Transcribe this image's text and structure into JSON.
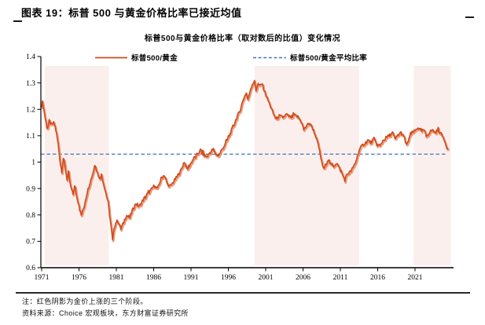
{
  "figure": {
    "title": "图表 19：标普 500 与黄金价格比率已接近均值",
    "chart_title": "标普500与黄金价格比率（取对数后的比值）变化情况",
    "note": "注：红色阴影为金价上涨的三个阶段。",
    "source": "资料来源：Choice 宏观板块，东方财富证券研究所"
  },
  "colors": {
    "series": "#CE4B1F",
    "series_echo": "#EB9E7D",
    "average_line": "#4472C4",
    "band": "#FBEFED",
    "axis": "#000000"
  },
  "chart_data": {
    "type": "line",
    "title": "标普500与黄金价格比率（取对数后的比值）变化情况",
    "legend": [
      {
        "label": "标普500/黄金",
        "style": "solid"
      },
      {
        "label": "标普500/黄金平均比率",
        "style": "dashed"
      }
    ],
    "x_axis": {
      "range": [
        1971,
        2026.3
      ],
      "tick_labels": [
        "1971",
        "1976",
        "1981",
        "1986",
        "1991",
        "1996",
        "2001",
        "2006",
        "2011",
        "2016",
        "2021"
      ],
      "tick_years": [
        1971,
        1976,
        1981,
        1986,
        1991,
        1996,
        2001,
        2006,
        2011,
        2016,
        2021
      ]
    },
    "y_axis": {
      "range": [
        0.6,
        1.4
      ],
      "tick_values": [
        1.4,
        1.3,
        1.2,
        1.1,
        1.0,
        0.9,
        0.8,
        0.7,
        0.6
      ],
      "tick_labels": [
        "1.4",
        "1.3",
        "1.2",
        "1.1",
        "1",
        "0.9",
        "0.8",
        "0.7",
        "0.6"
      ]
    },
    "average_ratio": 1.03,
    "shaded_bands_years": [
      [
        1971.4,
        1980.0
      ],
      [
        1999.5,
        2013.5
      ],
      [
        2020.8,
        2025.8
      ]
    ],
    "series": [
      {
        "name": "标普500/黄金",
        "points": [
          [
            1971.0,
            1.215
          ],
          [
            1971.15,
            1.225
          ],
          [
            1971.45,
            1.17
          ],
          [
            1971.75,
            1.125
          ],
          [
            1972.05,
            1.155
          ],
          [
            1972.35,
            1.14
          ],
          [
            1972.65,
            1.15
          ],
          [
            1972.95,
            1.115
          ],
          [
            1973.25,
            1.06
          ],
          [
            1973.5,
            0.995
          ],
          [
            1973.7,
            0.965
          ],
          [
            1973.9,
            1.015
          ],
          [
            1974.1,
            0.99
          ],
          [
            1974.4,
            0.935
          ],
          [
            1974.6,
            0.955
          ],
          [
            1974.9,
            0.905
          ],
          [
            1975.2,
            0.878
          ],
          [
            1975.45,
            0.912
          ],
          [
            1975.7,
            0.868
          ],
          [
            1976.0,
            0.838
          ],
          [
            1976.3,
            0.798
          ],
          [
            1976.55,
            0.818
          ],
          [
            1976.85,
            0.855
          ],
          [
            1977.15,
            0.892
          ],
          [
            1977.5,
            0.925
          ],
          [
            1977.85,
            0.958
          ],
          [
            1978.15,
            0.993
          ],
          [
            1978.45,
            0.962
          ],
          [
            1978.75,
            0.936
          ],
          [
            1979.0,
            0.952
          ],
          [
            1979.3,
            0.918
          ],
          [
            1979.6,
            0.882
          ],
          [
            1979.9,
            0.848
          ],
          [
            1980.1,
            0.8
          ],
          [
            1980.35,
            0.742
          ],
          [
            1980.5,
            0.702
          ],
          [
            1980.7,
            0.752
          ],
          [
            1980.95,
            0.773
          ],
          [
            1981.25,
            0.778
          ],
          [
            1981.55,
            0.745
          ],
          [
            1981.95,
            0.768
          ],
          [
            1982.35,
            0.8
          ],
          [
            1982.75,
            0.787
          ],
          [
            1983.15,
            0.818
          ],
          [
            1983.6,
            0.843
          ],
          [
            1984.1,
            0.833
          ],
          [
            1984.6,
            0.858
          ],
          [
            1985.1,
            0.878
          ],
          [
            1985.6,
            0.893
          ],
          [
            1986.1,
            0.912
          ],
          [
            1986.5,
            0.898
          ],
          [
            1987.0,
            0.938
          ],
          [
            1987.4,
            0.952
          ],
          [
            1987.8,
            0.918
          ],
          [
            1988.2,
            0.908
          ],
          [
            1988.7,
            0.928
          ],
          [
            1989.2,
            0.948
          ],
          [
            1989.7,
            0.972
          ],
          [
            1990.1,
            1.002
          ],
          [
            1990.5,
            0.972
          ],
          [
            1990.9,
            0.992
          ],
          [
            1991.3,
            1.012
          ],
          [
            1991.8,
            1.028
          ],
          [
            1992.3,
            1.046
          ],
          [
            1992.7,
            1.028
          ],
          [
            1993.1,
            1.02
          ],
          [
            1993.5,
            1.035
          ],
          [
            1993.9,
            1.048
          ],
          [
            1994.3,
            1.03
          ],
          [
            1994.7,
            1.025
          ],
          [
            1995.2,
            1.05
          ],
          [
            1995.7,
            1.075
          ],
          [
            1996.1,
            1.1
          ],
          [
            1996.5,
            1.125
          ],
          [
            1996.8,
            1.145
          ],
          [
            1997.2,
            1.175
          ],
          [
            1997.5,
            1.19
          ],
          [
            1997.8,
            1.22
          ],
          [
            1998.1,
            1.245
          ],
          [
            1998.4,
            1.262
          ],
          [
            1998.65,
            1.232
          ],
          [
            1998.9,
            1.272
          ],
          [
            1999.2,
            1.295
          ],
          [
            1999.5,
            1.305
          ],
          [
            1999.7,
            1.272
          ],
          [
            1999.95,
            1.298
          ],
          [
            2000.2,
            1.288
          ],
          [
            2000.5,
            1.298
          ],
          [
            2000.8,
            1.272
          ],
          [
            2001.2,
            1.242
          ],
          [
            2001.6,
            1.215
          ],
          [
            2002.0,
            1.185
          ],
          [
            2002.4,
            1.163
          ],
          [
            2002.8,
            1.175
          ],
          [
            2003.3,
            1.17
          ],
          [
            2003.8,
            1.18
          ],
          [
            2004.3,
            1.168
          ],
          [
            2004.8,
            1.178
          ],
          [
            2005.3,
            1.172
          ],
          [
            2005.8,
            1.152
          ],
          [
            2006.1,
            1.122
          ],
          [
            2006.45,
            1.138
          ],
          [
            2006.9,
            1.148
          ],
          [
            2007.3,
            1.128
          ],
          [
            2007.7,
            1.098
          ],
          [
            2008.1,
            1.058
          ],
          [
            2008.5,
            1.0
          ],
          [
            2008.8,
            0.972
          ],
          [
            2009.1,
            0.995
          ],
          [
            2009.4,
            1.012
          ],
          [
            2009.7,
            0.99
          ],
          [
            2010.1,
            0.985
          ],
          [
            2010.5,
            0.998
          ],
          [
            2010.9,
            0.975
          ],
          [
            2011.3,
            0.952
          ],
          [
            2011.6,
            0.932
          ],
          [
            2011.9,
            0.955
          ],
          [
            2012.3,
            0.962
          ],
          [
            2012.7,
            0.978
          ],
          [
            2013.1,
            1.005
          ],
          [
            2013.5,
            1.045
          ],
          [
            2013.9,
            1.062
          ],
          [
            2014.3,
            1.072
          ],
          [
            2014.7,
            1.082
          ],
          [
            2015.1,
            1.075
          ],
          [
            2015.5,
            1.088
          ],
          [
            2015.9,
            1.066
          ],
          [
            2016.3,
            1.06
          ],
          [
            2016.7,
            1.082
          ],
          [
            2017.1,
            1.092
          ],
          [
            2017.6,
            1.102
          ],
          [
            2018.0,
            1.112
          ],
          [
            2018.3,
            1.086
          ],
          [
            2018.7,
            1.102
          ],
          [
            2019.1,
            1.112
          ],
          [
            2019.5,
            1.096
          ],
          [
            2019.9,
            1.062
          ],
          [
            2020.2,
            1.092
          ],
          [
            2020.6,
            1.112
          ],
          [
            2021.0,
            1.118
          ],
          [
            2021.4,
            1.132
          ],
          [
            2021.8,
            1.116
          ],
          [
            2022.2,
            1.122
          ],
          [
            2022.5,
            1.098
          ],
          [
            2022.9,
            1.112
          ],
          [
            2023.3,
            1.122
          ],
          [
            2023.7,
            1.112
          ],
          [
            2024.1,
            1.122
          ],
          [
            2024.5,
            1.106
          ],
          [
            2024.9,
            1.088
          ],
          [
            2025.2,
            1.062
          ],
          [
            2025.4,
            1.05
          ]
        ]
      }
    ]
  }
}
